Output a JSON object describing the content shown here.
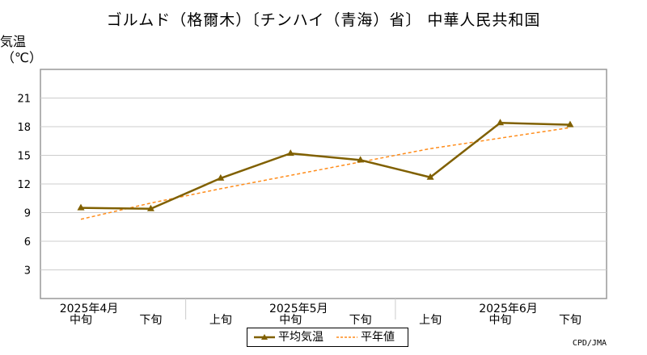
{
  "title": "ゴルムド（格爾木）〔チンハイ（青海）省〕 中華人民共和国",
  "credit": "CPD/JMA",
  "chart_data": {
    "type": "line",
    "title": "ゴルムド（格爾木）〔チンハイ（青海）省〕 中華人民共和国",
    "ylabel": "気温",
    "yunit": "（℃）",
    "ylim": [
      0,
      24
    ],
    "yticks": [
      3,
      6,
      9,
      12,
      15,
      18,
      21
    ],
    "grid": true,
    "legend_position": "bottom-center",
    "categories": [
      "中旬",
      "下旬",
      "上旬",
      "中旬",
      "下旬",
      "上旬",
      "中旬",
      "下旬"
    ],
    "month_labels": [
      {
        "label": "2025年4月",
        "index": 0
      },
      {
        "label": "2025年5月",
        "index": 3
      },
      {
        "label": "2025年6月",
        "index": 6
      }
    ],
    "series": [
      {
        "name": "平均気温",
        "style": "solid",
        "marker": "triangle",
        "color": "#806000",
        "values": [
          9.5,
          9.4,
          12.6,
          15.2,
          14.5,
          12.7,
          18.4,
          18.2
        ]
      },
      {
        "name": "平年値",
        "style": "dashed",
        "color": "#ff8c1a",
        "values": [
          8.3,
          10.0,
          11.5,
          12.9,
          14.3,
          15.7,
          16.8,
          17.9
        ]
      }
    ]
  }
}
